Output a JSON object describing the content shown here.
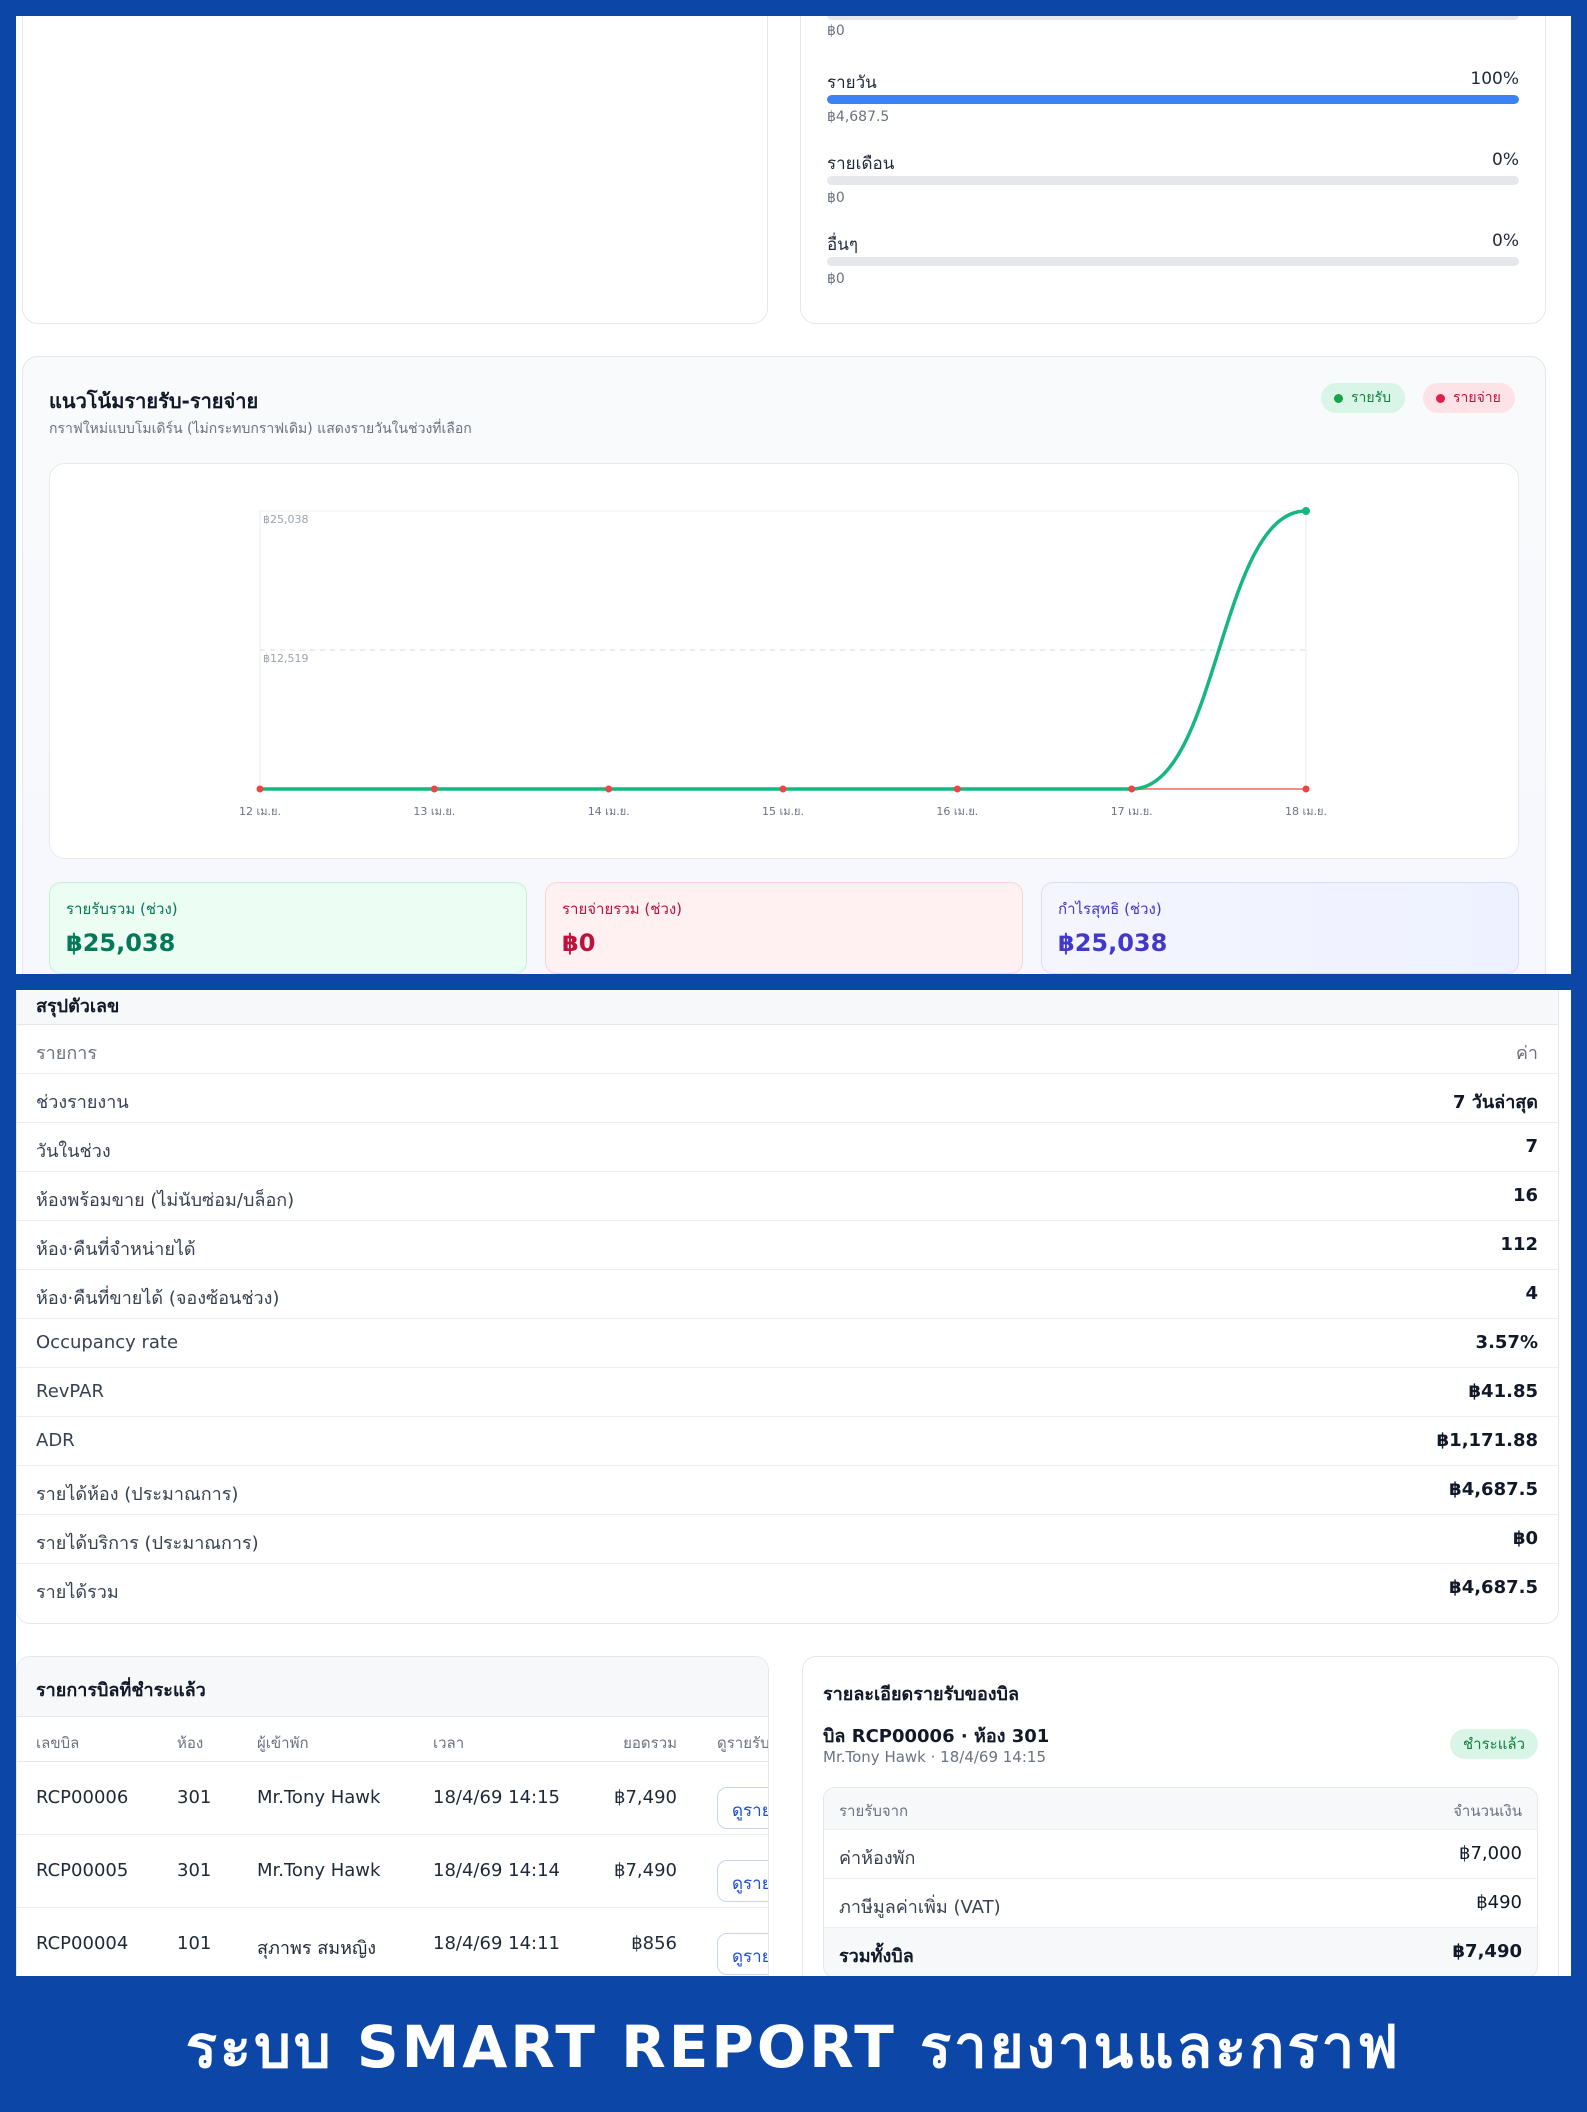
{
  "channels": [
    {
      "label": "",
      "percent_text": "",
      "amount": "฿0",
      "fill": 0
    },
    {
      "label": "รายวัน",
      "percent_text": "100%",
      "amount": "฿4,687.5",
      "fill": 1
    },
    {
      "label": "รายเดือน",
      "percent_text": "0%",
      "amount": "฿0",
      "fill": 0
    },
    {
      "label": "อื่นๆ",
      "percent_text": "0%",
      "amount": "฿0",
      "fill": 0
    }
  ],
  "trend": {
    "title": "แนวโน้มรายรับ-รายจ่าย",
    "subtitle": "กราฟใหม่แบบโมเดิร์น (ไม่กระทบกราฟเดิม) แสดงรายวันในช่วงที่เลือก",
    "legend_income": "รายรับ",
    "legend_expense": "รายจ่าย",
    "colors": {
      "income": "#16b67f",
      "expense": "#ef4444"
    }
  },
  "chart_data": {
    "type": "line",
    "categories": [
      "12 เม.ย.",
      "13 เม.ย.",
      "14 เม.ย.",
      "15 เม.ย.",
      "16 เม.ย.",
      "17 เม.ย.",
      "18 เม.ย."
    ],
    "series": [
      {
        "name": "รายรับ",
        "values": [
          0,
          0,
          0,
          0,
          0,
          0,
          25038
        ]
      },
      {
        "name": "รายจ่าย",
        "values": [
          0,
          0,
          0,
          0,
          0,
          0,
          0
        ]
      }
    ],
    "y_ticks": [
      "฿25,038",
      "฿12,519"
    ],
    "ylim": [
      0,
      25038
    ],
    "grid": true
  },
  "stats": {
    "income_label": "รายรับรวม (ช่วง)",
    "income_value": "฿25,038",
    "expense_label": "รายจ่ายรวม (ช่วง)",
    "expense_value": "฿0",
    "profit_label": "กำไรสุทธิ (ช่วง)",
    "profit_value": "฿25,038"
  },
  "summary": {
    "title": "สรุปตัวเลข",
    "header": {
      "item": "รายการ",
      "value": "ค่า"
    },
    "rows": [
      {
        "item": "ช่วงรายงาน",
        "value": "7 วันล่าสุด"
      },
      {
        "item": "วันในช่วง",
        "value": "7"
      },
      {
        "item": "ห้องพร้อมขาย (ไม่นับซ่อม/บล็อก)",
        "value": "16"
      },
      {
        "item": "ห้อง·คืนที่จำหน่ายได้",
        "value": "112"
      },
      {
        "item": "ห้อง·คืนที่ขายได้ (จองซ้อนช่วง)",
        "value": "4"
      },
      {
        "item": "Occupancy rate",
        "value": "3.57%"
      },
      {
        "item": "RevPAR",
        "value": "฿41.85"
      },
      {
        "item": "ADR",
        "value": "฿1,171.88"
      },
      {
        "item": "รายได้ห้อง (ประมาณการ)",
        "value": "฿4,687.5"
      },
      {
        "item": "รายได้บริการ (ประมาณการ)",
        "value": "฿0"
      },
      {
        "item": "รายได้รวม",
        "value": "฿4,687.5"
      }
    ]
  },
  "bills": {
    "title": "รายการบิลที่ชำระแล้ว",
    "columns": [
      "เลขบิล",
      "ห้อง",
      "ผู้เข้าพัก",
      "เวลา",
      "ยอดรวม",
      "ดูรายรับ"
    ],
    "view_label": "ดูราย",
    "rows": [
      {
        "bill": "RCP00006",
        "room": "301",
        "guest": "Mr.Tony Hawk",
        "time": "18/4/69 14:15",
        "total": "฿7,490"
      },
      {
        "bill": "RCP00005",
        "room": "301",
        "guest": "Mr.Tony Hawk",
        "time": "18/4/69 14:14",
        "total": "฿7,490"
      },
      {
        "bill": "RCP00004",
        "room": "101",
        "guest": "สุภาพร สมหญิง",
        "time": "18/4/69 14:11",
        "total": "฿856"
      }
    ]
  },
  "detail": {
    "title": "รายละเอียดรายรับของบิล",
    "bill_line": "บิล RCP00006 · ห้อง 301",
    "meta": "Mr.Tony Hawk · 18/4/69 14:15",
    "status": "ชำระแล้ว",
    "header": {
      "source": "รายรับจาก",
      "amount": "จำนวนเงิน"
    },
    "rows": [
      {
        "source": "ค่าห้องพัก",
        "amount": "฿7,000"
      },
      {
        "source": "ภาษีมูลค่าเพิ่ม (VAT)",
        "amount": "฿490"
      }
    ],
    "total_label": "รวมทั้งบิล",
    "total_value": "฿7,490"
  },
  "banner": {
    "text": "ระบบ SMART REPORT รายงานและกราฟ"
  }
}
